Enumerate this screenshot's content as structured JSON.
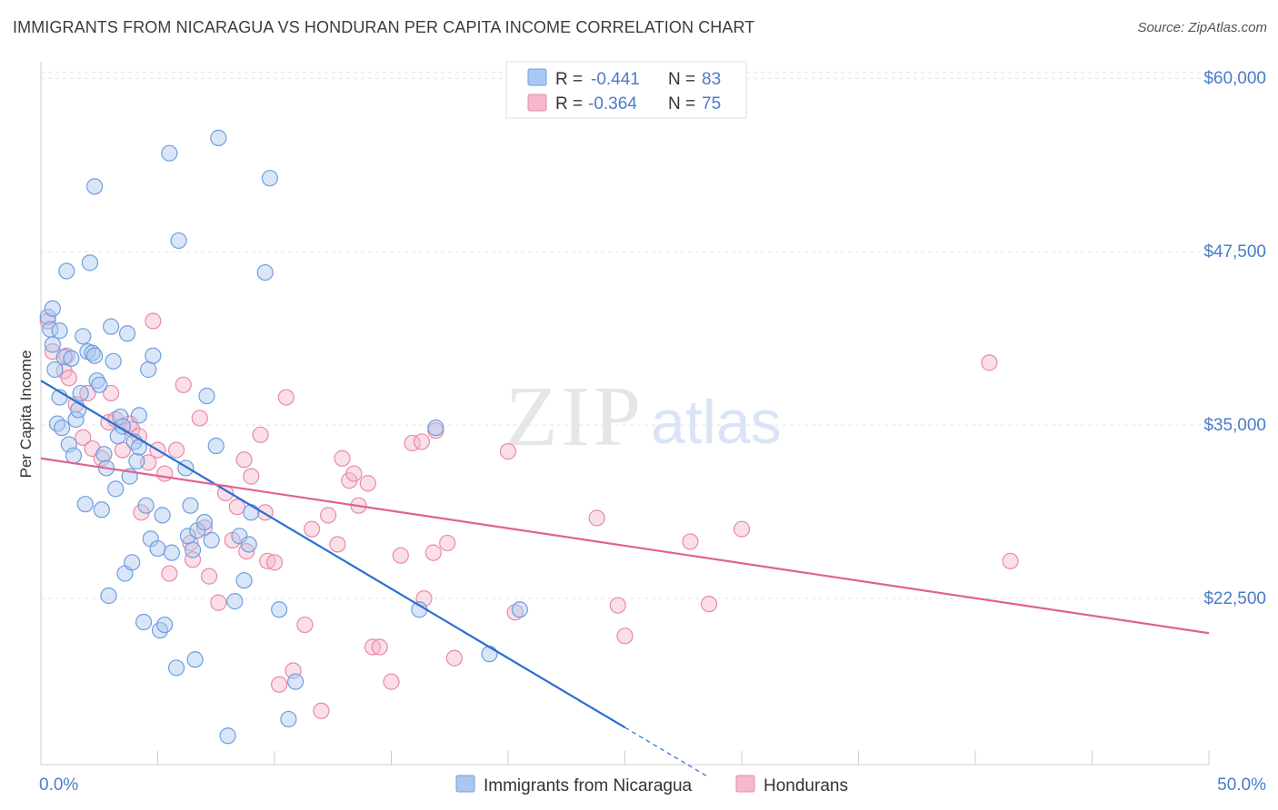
{
  "header": {
    "title": "IMMIGRANTS FROM NICARAGUA VS HONDURAN PER CAPITA INCOME CORRELATION CHART",
    "source": "Source: ZipAtlas.com"
  },
  "watermark": {
    "zip": "ZIP",
    "atlas": "atlas"
  },
  "legend_top": {
    "rows": [
      {
        "r_label": "R =",
        "r_value": "-0.441",
        "n_label": "N =",
        "n_value": "83",
        "color": "#aac8ef"
      },
      {
        "r_label": "R =",
        "r_value": "-0.364",
        "n_label": "N =",
        "n_value": "75",
        "color": "#f5b8cc"
      }
    ]
  },
  "legend_bottom": {
    "items": [
      {
        "label": "Immigrants from Nicaragua",
        "color": "#aac8ef"
      },
      {
        "label": "Hondurans",
        "color": "#f5b8cc"
      }
    ]
  },
  "colors": {
    "blue_fill": "#aac8ef",
    "blue_stroke": "#6f9ee0",
    "blue_line": "#2a6fd1",
    "pink_fill": "#f5b8cc",
    "pink_stroke": "#e88aa8",
    "pink_line": "#e0638c",
    "grid": "#e3e3e3",
    "axis_label": "#4a7cc9"
  },
  "chart_data": {
    "type": "scatter",
    "title": "IMMIGRANTS FROM NICARAGUA VS HONDURAN PER CAPITA INCOME CORRELATION CHART",
    "xlabel": "",
    "ylabel": "Per Capita Income",
    "xlim": [
      0,
      50
    ],
    "ylim": [
      10000,
      62500
    ],
    "x_tick_labels": [
      "0.0%",
      "50.0%"
    ],
    "y_ticks": [
      22500,
      35000,
      47500,
      60000
    ],
    "y_tick_labels": [
      "$22,500",
      "$35,000",
      "$47,500",
      "$60,000"
    ],
    "grid": true,
    "legend_position": "top-center",
    "series": [
      {
        "name": "Immigrants from Nicaragua",
        "points": [
          [
            0.3,
            42800
          ],
          [
            0.5,
            43400
          ],
          [
            0.4,
            41900
          ],
          [
            0.5,
            40800
          ],
          [
            0.6,
            39000
          ],
          [
            0.8,
            41800
          ],
          [
            0.8,
            37000
          ],
          [
            0.7,
            35100
          ],
          [
            0.9,
            34800
          ],
          [
            1.0,
            39900
          ],
          [
            1.1,
            46100
          ],
          [
            1.2,
            33600
          ],
          [
            1.3,
            39800
          ],
          [
            1.4,
            32800
          ],
          [
            1.5,
            35400
          ],
          [
            1.6,
            36100
          ],
          [
            1.7,
            37300
          ],
          [
            1.8,
            41400
          ],
          [
            1.9,
            29300
          ],
          [
            2.0,
            40300
          ],
          [
            2.1,
            46700
          ],
          [
            2.2,
            40200
          ],
          [
            2.3,
            52200
          ],
          [
            2.4,
            38200
          ],
          [
            2.5,
            37900
          ],
          [
            2.6,
            28900
          ],
          [
            2.7,
            32900
          ],
          [
            2.8,
            31900
          ],
          [
            2.9,
            22700
          ],
          [
            3.0,
            42100
          ],
          [
            3.1,
            39600
          ],
          [
            3.2,
            30400
          ],
          [
            3.3,
            34200
          ],
          [
            3.4,
            35600
          ],
          [
            3.5,
            34900
          ],
          [
            3.6,
            24300
          ],
          [
            3.7,
            41600
          ],
          [
            3.8,
            31300
          ],
          [
            3.9,
            25100
          ],
          [
            4.0,
            33800
          ],
          [
            4.1,
            32400
          ],
          [
            4.2,
            33400
          ],
          [
            4.4,
            20800
          ],
          [
            4.5,
            29200
          ],
          [
            4.6,
            39000
          ],
          [
            4.7,
            26800
          ],
          [
            4.8,
            40000
          ],
          [
            5.0,
            26100
          ],
          [
            5.1,
            20200
          ],
          [
            5.2,
            28500
          ],
          [
            5.3,
            20600
          ],
          [
            5.5,
            54600
          ],
          [
            5.6,
            25800
          ],
          [
            5.8,
            17500
          ],
          [
            5.9,
            48300
          ],
          [
            6.2,
            31900
          ],
          [
            6.3,
            27000
          ],
          [
            6.4,
            29200
          ],
          [
            6.5,
            26000
          ],
          [
            6.6,
            18100
          ],
          [
            6.7,
            27400
          ],
          [
            7.0,
            28000
          ],
          [
            7.1,
            37100
          ],
          [
            7.3,
            26700
          ],
          [
            7.5,
            33500
          ],
          [
            8.0,
            12600
          ],
          [
            8.3,
            22300
          ],
          [
            8.5,
            27000
          ],
          [
            8.7,
            23800
          ],
          [
            8.9,
            26400
          ],
          [
            9.0,
            28700
          ],
          [
            9.6,
            46000
          ],
          [
            9.8,
            52800
          ],
          [
            10.2,
            21700
          ],
          [
            10.6,
            13800
          ],
          [
            10.9,
            16500
          ],
          [
            16.2,
            21700
          ],
          [
            16.9,
            34800
          ],
          [
            19.2,
            18500
          ],
          [
            20.5,
            21700
          ],
          [
            7.6,
            55700
          ],
          [
            4.2,
            35700
          ],
          [
            2.3,
            40000
          ]
        ]
      },
      {
        "name": "Hondurans",
        "points": [
          [
            0.3,
            42500
          ],
          [
            0.5,
            40300
          ],
          [
            1.0,
            38900
          ],
          [
            1.1,
            40000
          ],
          [
            1.2,
            38400
          ],
          [
            1.5,
            36500
          ],
          [
            1.8,
            34100
          ],
          [
            2.0,
            37300
          ],
          [
            2.2,
            33300
          ],
          [
            2.6,
            32600
          ],
          [
            2.9,
            35200
          ],
          [
            3.0,
            37300
          ],
          [
            3.2,
            35400
          ],
          [
            3.5,
            33200
          ],
          [
            3.8,
            35100
          ],
          [
            3.9,
            34700
          ],
          [
            4.2,
            34200
          ],
          [
            4.3,
            28700
          ],
          [
            4.6,
            32300
          ],
          [
            4.8,
            42500
          ],
          [
            5.0,
            33200
          ],
          [
            5.3,
            31500
          ],
          [
            5.5,
            24300
          ],
          [
            5.8,
            33200
          ],
          [
            6.1,
            37900
          ],
          [
            6.4,
            26500
          ],
          [
            6.5,
            25300
          ],
          [
            6.8,
            35500
          ],
          [
            7.0,
            27600
          ],
          [
            7.2,
            24100
          ],
          [
            7.6,
            22200
          ],
          [
            7.9,
            30100
          ],
          [
            8.2,
            26700
          ],
          [
            8.4,
            29100
          ],
          [
            8.7,
            32500
          ],
          [
            8.8,
            25900
          ],
          [
            9.0,
            31300
          ],
          [
            9.4,
            34300
          ],
          [
            9.6,
            28700
          ],
          [
            9.7,
            25200
          ],
          [
            10.0,
            25100
          ],
          [
            10.2,
            16300
          ],
          [
            10.5,
            37000
          ],
          [
            10.8,
            17300
          ],
          [
            11.3,
            20600
          ],
          [
            11.6,
            27500
          ],
          [
            12.0,
            14400
          ],
          [
            12.3,
            28500
          ],
          [
            12.7,
            26400
          ],
          [
            12.9,
            32600
          ],
          [
            13.2,
            31000
          ],
          [
            13.4,
            31500
          ],
          [
            13.6,
            29200
          ],
          [
            14.0,
            30800
          ],
          [
            14.2,
            19000
          ],
          [
            14.5,
            19000
          ],
          [
            15.0,
            16500
          ],
          [
            15.4,
            25600
          ],
          [
            15.9,
            33700
          ],
          [
            16.3,
            33800
          ],
          [
            16.4,
            22500
          ],
          [
            16.8,
            25800
          ],
          [
            16.9,
            34600
          ],
          [
            17.4,
            26500
          ],
          [
            17.7,
            18200
          ],
          [
            20.3,
            21500
          ],
          [
            20.0,
            33100
          ],
          [
            23.8,
            28300
          ],
          [
            24.7,
            22000
          ],
          [
            25.0,
            19800
          ],
          [
            27.8,
            26600
          ],
          [
            28.6,
            22100
          ],
          [
            30.0,
            27500
          ],
          [
            40.6,
            39500
          ],
          [
            41.5,
            25200
          ]
        ]
      }
    ],
    "trend_lines": [
      {
        "series": "Immigrants from Nicaragua",
        "x": [
          0,
          25.0
        ],
        "y": [
          38200,
          13200
        ],
        "extension_x": [
          25.0,
          28.5
        ],
        "extension_y": [
          13200,
          9700
        ]
      },
      {
        "series": "Hondurans",
        "x": [
          0,
          50
        ],
        "y": [
          32600,
          20000
        ]
      }
    ]
  }
}
